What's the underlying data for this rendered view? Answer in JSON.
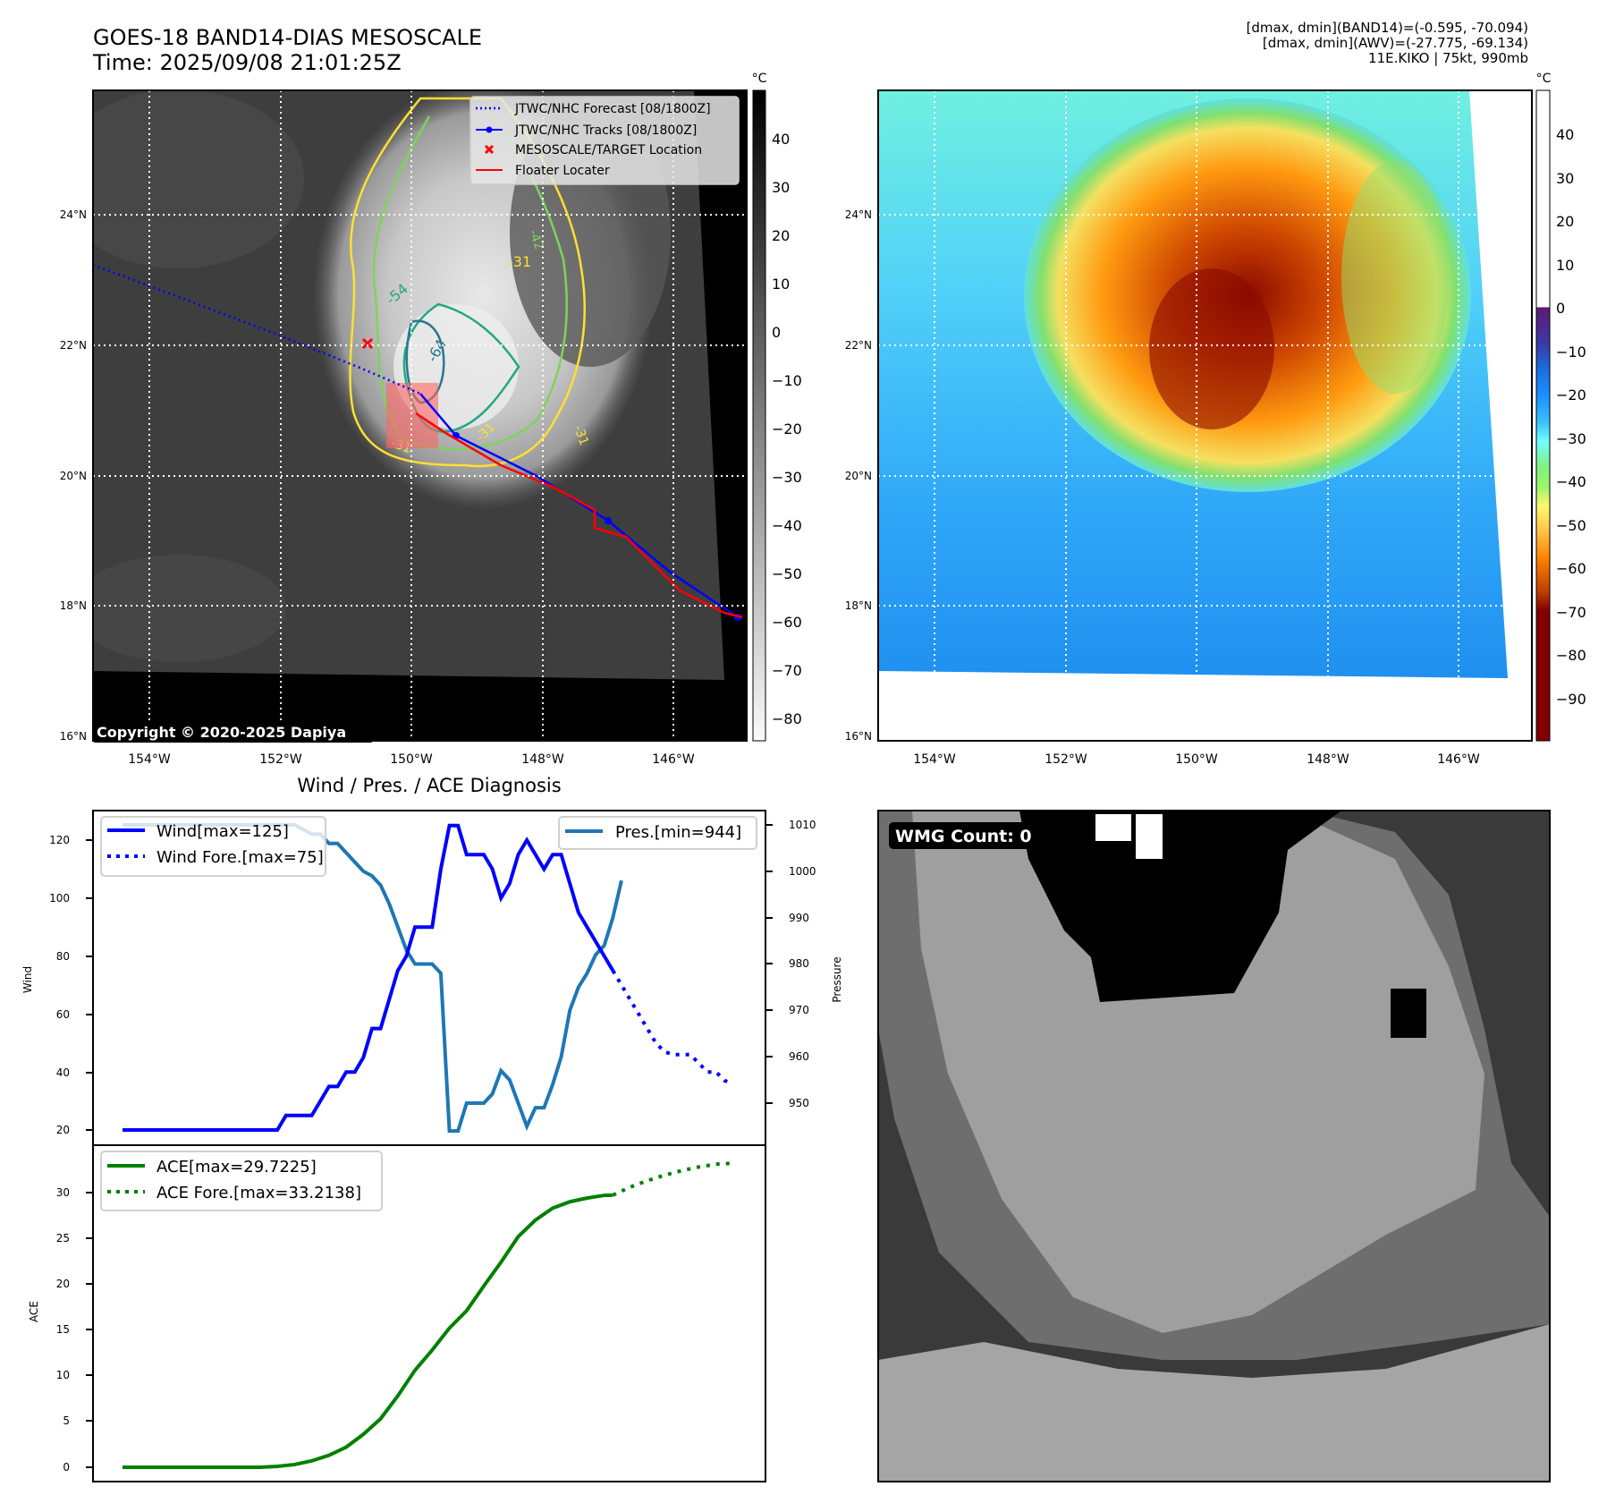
{
  "header": {
    "title_line1": "GOES-18 BAND14-DIAS MESOSCALE",
    "title_line2": "Time: 2025/09/08 21:01:25Z",
    "info_line1": "[dmax, dmin](BAND14)=(-0.595, -70.094)",
    "info_line2": "[dmax, dmin](AWV)=(-27.775, -69.134)",
    "info_line3": "11E.KIKO | 75kt, 990mb"
  },
  "ir_map": {
    "lat_labels": [
      "24°N",
      "22°N",
      "20°N",
      "18°N",
      "16°N"
    ],
    "lon_labels": [
      "154°W",
      "152°W",
      "150°W",
      "148°W",
      "146°W"
    ],
    "copyright": "Copyright © 2020-2025 Dapiya",
    "contour_labels": [
      "-31",
      "-54",
      "-64",
      "-31",
      "-31",
      "-31",
      "-42"
    ],
    "legend": [
      {
        "label": "JTWC/NHC Forecast [08/1800Z]",
        "color": "#0000ff",
        "style": "dotted"
      },
      {
        "label": "JTWC/NHC Tracks [08/1800Z]",
        "color": "#0000ff",
        "style": "line-marker"
      },
      {
        "label": "MESOSCALE/TARGET Location",
        "color": "#ff0000",
        "style": "x-marker"
      },
      {
        "label": "Floater Locater",
        "color": "#ff0000",
        "style": "line"
      }
    ],
    "colorbar": {
      "unit": "°C",
      "ticks": [
        "40",
        "30",
        "20",
        "10",
        "0",
        "−10",
        "−20",
        "−30",
        "−40",
        "−50",
        "−60",
        "−70",
        "−80"
      ],
      "range": [
        -85,
        48
      ]
    }
  },
  "awv_map": {
    "lat_labels": [
      "24°N",
      "22°N",
      "20°N",
      "18°N",
      "16°N"
    ],
    "lon_labels": [
      "154°W",
      "152°W",
      "150°W",
      "148°W",
      "146°W"
    ],
    "colorbar": {
      "unit": "°C",
      "ticks": [
        "40",
        "30",
        "20",
        "10",
        "0",
        "−10",
        "−20",
        "−30",
        "−40",
        "−50",
        "−60",
        "−70",
        "−80",
        "−90"
      ],
      "range": [
        -100,
        50
      ]
    }
  },
  "wmg_panel": {
    "label": "WMG Count: 0"
  },
  "colors": {
    "wind": "#0000ff",
    "pressure": "#1f77b4",
    "ace": "#008000",
    "track_red": "#ff0000",
    "contour_yellow": "#ffe030",
    "contour_green": "#7fd35a",
    "contour_teal": "#22a884",
    "contour_dark": "#2a788e"
  },
  "chart_data": [
    {
      "type": "line",
      "title": "Wind / Pres. / ACE Diagnosis",
      "xlabel": "",
      "ylabel": "Wind",
      "ylabel_right": "Pressure",
      "ylim": [
        17,
        128
      ],
      "ylim_right": [
        942,
        1013
      ],
      "yticks": [
        "120",
        "100",
        "80",
        "60",
        "40",
        "20"
      ],
      "yticks_right": [
        "1010",
        "1000",
        "990",
        "980",
        "970",
        "960",
        "950"
      ],
      "x": [
        0,
        1,
        2,
        3,
        4,
        5,
        6,
        7,
        8,
        9,
        10,
        11,
        12,
        13,
        14,
        15,
        16,
        17,
        18,
        19,
        20,
        21,
        22,
        23,
        24,
        25,
        26,
        27,
        28,
        29,
        30,
        31,
        32,
        33,
        34,
        35,
        36,
        37,
        38,
        39,
        40,
        41,
        42,
        43,
        44,
        45,
        46,
        47,
        48,
        49,
        50,
        51,
        52,
        53,
        54,
        55,
        56,
        57,
        58,
        59,
        60,
        61,
        62,
        63,
        64,
        65,
        66,
        67,
        68,
        69,
        70
      ],
      "series": [
        {
          "name": "Wind[max=125]",
          "axis": "left",
          "style": "solid",
          "color": "#0000ff",
          "x": [
            0,
            2,
            4,
            6,
            8,
            10,
            12,
            14,
            16,
            18,
            19,
            20,
            21,
            22,
            23,
            24,
            25,
            26,
            27,
            28,
            29,
            30,
            31,
            32,
            33,
            34,
            35,
            36,
            37,
            38,
            39,
            40,
            41,
            42,
            43,
            44,
            45,
            46,
            47,
            48,
            49,
            50,
            51,
            52,
            53,
            54,
            55,
            56,
            57,
            58,
            59
          ],
          "values": [
            20,
            20,
            20,
            20,
            20,
            20,
            20,
            20,
            20,
            20,
            25,
            25,
            25,
            25,
            30,
            35,
            35,
            40,
            40,
            45,
            55,
            55,
            65,
            75,
            80,
            90,
            90,
            90,
            110,
            125,
            125,
            115,
            115,
            115,
            110,
            100,
            105,
            115,
            120,
            115,
            110,
            115,
            115,
            105,
            95,
            90,
            85,
            80,
            75,
            null,
            null
          ]
        },
        {
          "name": "Wind Fore.[max=75]",
          "axis": "left",
          "style": "dotted",
          "color": "#0000ff",
          "x": [
            57,
            58,
            59,
            60,
            61,
            62,
            63,
            64,
            65,
            66,
            67,
            68,
            69,
            70,
            71
          ],
          "values": [
            75,
            70,
            65,
            60,
            55,
            50,
            47,
            46,
            46,
            46,
            43,
            40,
            40,
            37,
            36
          ]
        },
        {
          "name": "Pres.[min=944]",
          "axis": "right",
          "style": "solid",
          "color": "#1f77b4",
          "x": [
            0,
            4,
            8,
            12,
            16,
            20,
            22,
            23,
            24,
            25,
            26,
            27,
            28,
            29,
            30,
            31,
            32,
            33,
            34,
            35,
            36,
            37,
            38,
            39,
            40,
            41,
            42,
            43,
            44,
            45,
            46,
            47,
            48,
            49,
            50,
            51,
            52,
            53,
            54,
            55,
            56,
            57,
            58
          ],
          "values": [
            1010,
            1010,
            1010,
            1010,
            1010,
            1010,
            1008,
            1008,
            1006,
            1006,
            1004,
            1002,
            1000,
            999,
            997,
            993,
            988,
            983,
            980,
            980,
            980,
            978,
            944,
            944,
            950,
            950,
            950,
            952,
            957,
            955,
            950,
            945,
            949,
            949,
            954,
            960,
            970,
            975,
            978,
            982,
            984,
            990,
            998
          ]
        }
      ],
      "legend": [
        "Wind[max=125]",
        "Wind Fore.[max=75]",
        "Pres.[min=944]"
      ]
    },
    {
      "type": "line",
      "title": "",
      "xlabel": "",
      "ylabel": "ACE",
      "ylim": [
        -1.5,
        35
      ],
      "yticks": [
        "30",
        "25",
        "20",
        "15",
        "10",
        "5",
        "0"
      ],
      "series": [
        {
          "name": "ACE[max=29.7225]",
          "style": "solid",
          "color": "#008000",
          "x": [
            0,
            4,
            8,
            12,
            16,
            18,
            20,
            22,
            24,
            26,
            28,
            30,
            32,
            34,
            36,
            38,
            40,
            42,
            44,
            46,
            48,
            50,
            52,
            54,
            56,
            57
          ],
          "values": [
            0,
            0,
            0,
            0,
            0,
            0.1,
            0.3,
            0.7,
            1.3,
            2.2,
            3.6,
            5.3,
            7.8,
            10.6,
            12.8,
            15.2,
            17.1,
            19.8,
            22.4,
            25.2,
            27.0,
            28.3,
            29.0,
            29.4,
            29.7,
            29.72
          ]
        },
        {
          "name": "ACE Fore.[max=33.2138]",
          "style": "dotted",
          "color": "#008000",
          "x": [
            57,
            59,
            61,
            63,
            65,
            67,
            69,
            71
          ],
          "values": [
            29.72,
            30.6,
            31.3,
            31.9,
            32.4,
            32.8,
            33.1,
            33.21
          ]
        }
      ],
      "legend": [
        "ACE[max=29.7225]",
        "ACE Fore.[max=33.2138]"
      ]
    }
  ]
}
